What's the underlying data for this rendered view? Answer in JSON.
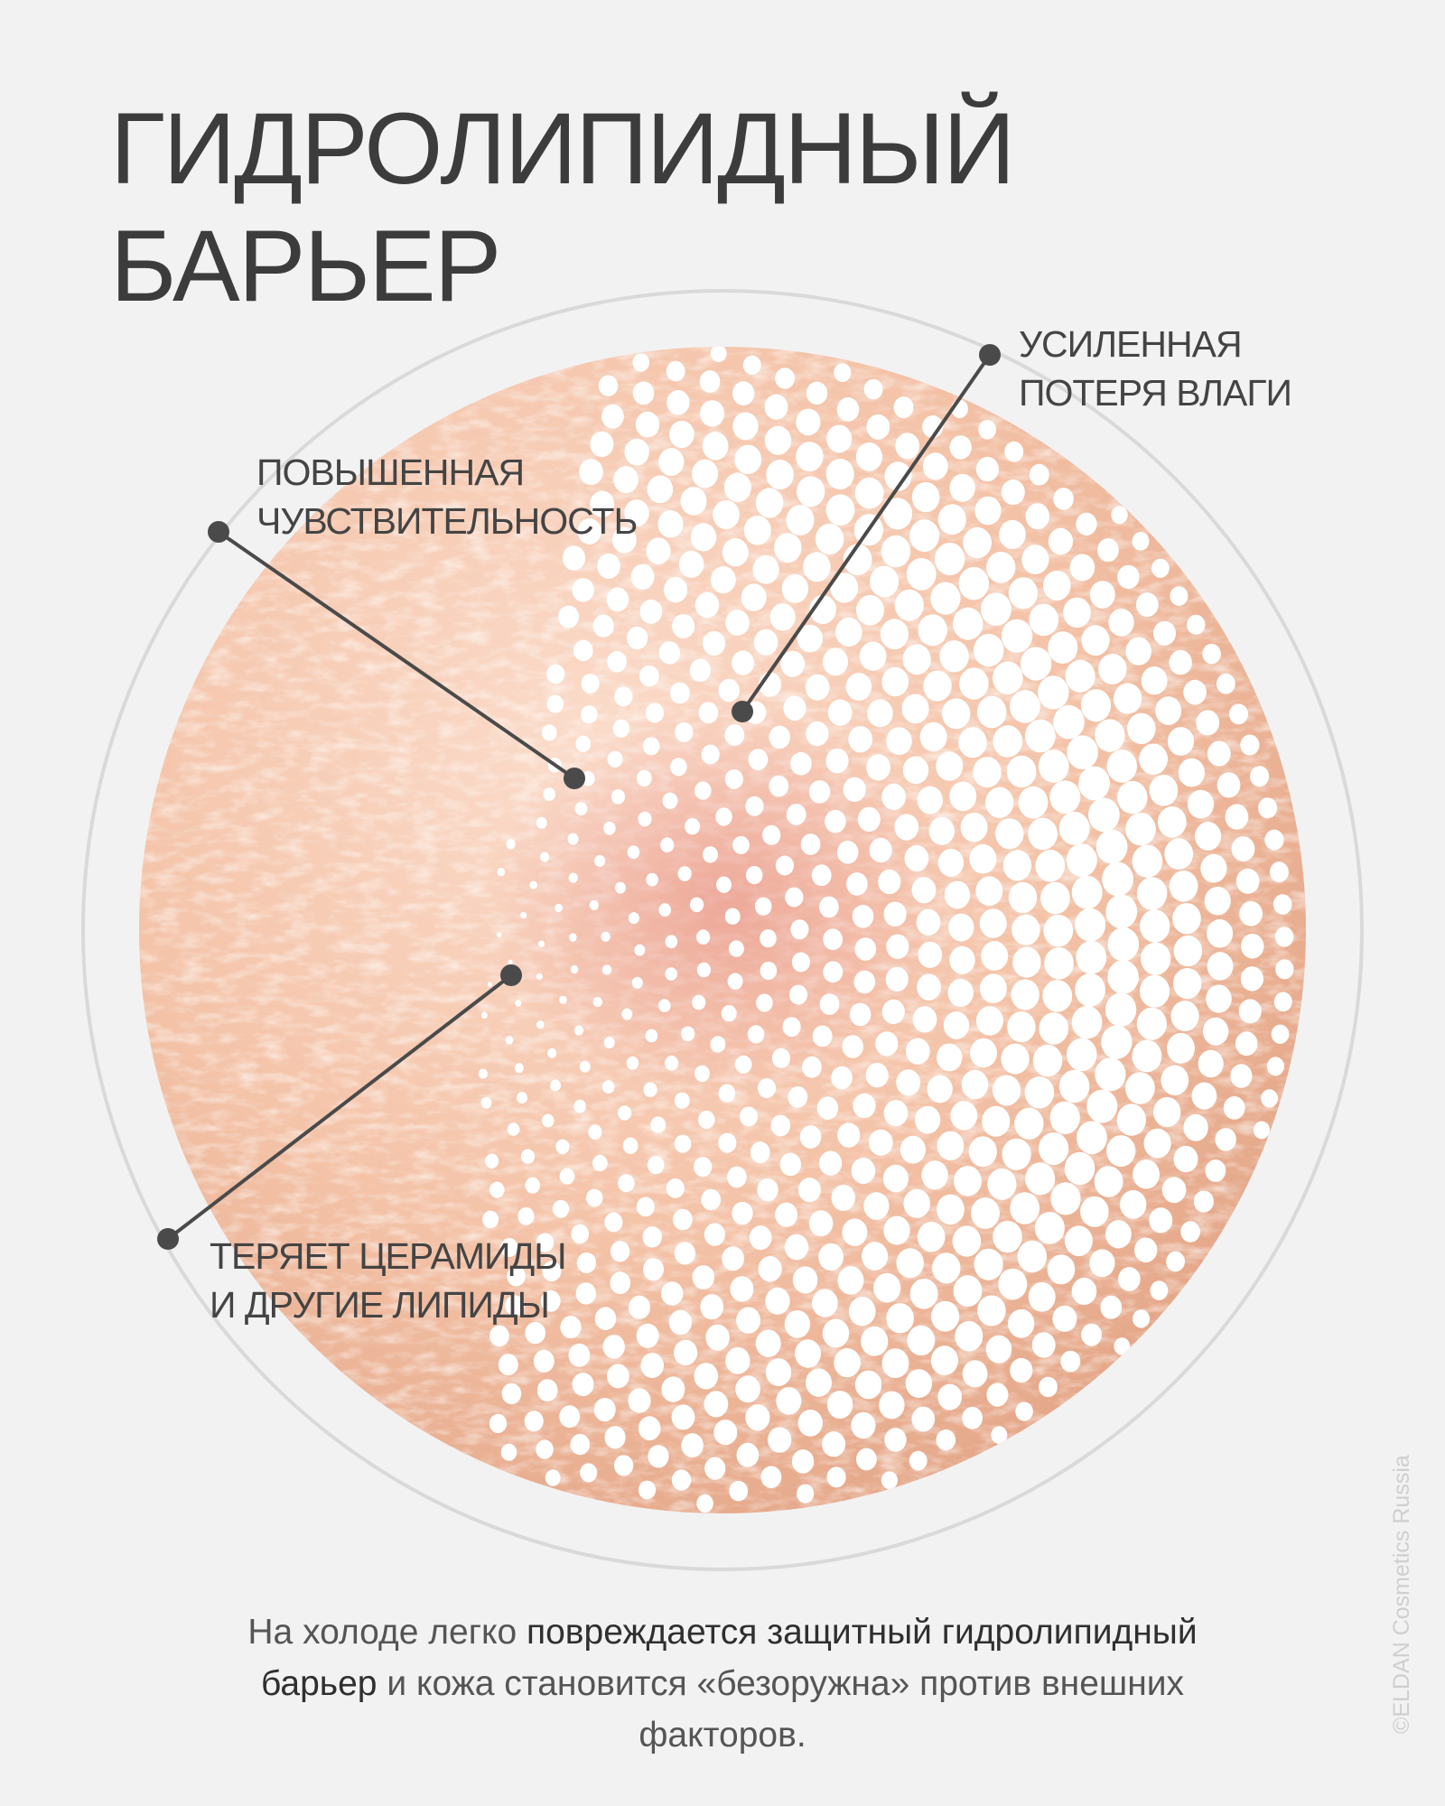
{
  "title": {
    "line1": "ГИДРОЛИПИДНЫЙ",
    "line2": "БАРЬЕР"
  },
  "callouts": {
    "moisture": {
      "line1": "УСИЛЕННАЯ",
      "line2": "ПОТЕРЯ ВЛАГИ"
    },
    "sensitivity": {
      "line1": "ПОВЫШЕННАЯ",
      "line2": "ЧУВСТВИТЕЛЬНОСТЬ"
    },
    "lipids": {
      "line1": "ТЕРЯЕТ ЦЕРАМИДЫ",
      "line2": "И ДРУГИЕ ЛИПИДЫ"
    }
  },
  "caption": {
    "part1": "На холоде легко ",
    "bold1": "повреждается защитный гидролипидный барьер",
    "part2": " и кожа становится «безоружна» против внешних факторов."
  },
  "watermark": "©ELDAN Cosmetics Russia",
  "colors": {
    "background": "#f2f2f2",
    "skin_light": "#f7cfb8",
    "skin_dark": "#e6a585",
    "inflammation": "#e88b80",
    "line": "#4a4a4a",
    "outer_ring": "#d8d8d8"
  }
}
